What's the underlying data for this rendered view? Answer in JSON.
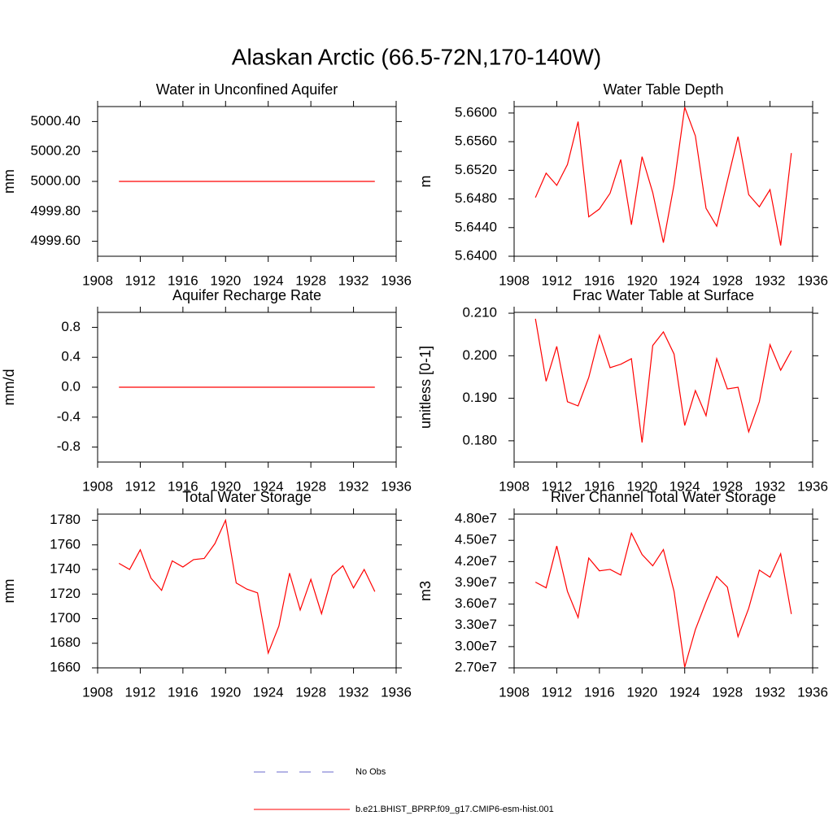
{
  "title": "Alaskan Arctic (66.5-72N,170-140W)",
  "legend": [
    {
      "name": "No Obs",
      "color": "#6a6acd",
      "dashed": true
    },
    {
      "name": "b.e21.BHIST_BPRP.f09_g17.CMIP6-esm-hist.001",
      "color": "red",
      "dashed": false
    }
  ],
  "chart_data": [
    {
      "type": "line",
      "title": "Water in Unconfined Aquifer",
      "ylabel": "mm",
      "x": [
        1910,
        1911,
        1912,
        1913,
        1914,
        1915,
        1916,
        1917,
        1918,
        1919,
        1920,
        1921,
        1922,
        1923,
        1924,
        1925,
        1926,
        1927,
        1928,
        1929,
        1930,
        1931,
        1932,
        1933,
        1934
      ],
      "xlim": [
        1908,
        1936
      ],
      "xticks": [
        1908,
        1912,
        1916,
        1920,
        1924,
        1928,
        1932,
        1936
      ],
      "ylim": [
        4999.5,
        5000.5
      ],
      "yticks": [
        {
          "value": 4999.6,
          "label": "4999.60"
        },
        {
          "value": 4999.8,
          "label": "4999.80"
        },
        {
          "value": 5000,
          "label": "5000.00"
        },
        {
          "value": 5000.2,
          "label": "5000.20"
        },
        {
          "value": 5000.4,
          "label": "5000.40"
        }
      ],
      "series": [
        {
          "color": "red",
          "values": [
            5000,
            5000,
            5000,
            5000,
            5000,
            5000,
            5000,
            5000,
            5000,
            5000,
            5000,
            5000,
            5000,
            5000,
            5000,
            5000,
            5000,
            5000,
            5000,
            5000,
            5000,
            5000,
            5000,
            5000,
            5000
          ]
        }
      ]
    },
    {
      "type": "line",
      "title": "Water Table Depth",
      "ylabel": "m",
      "x": [
        1910,
        1911,
        1912,
        1913,
        1914,
        1915,
        1916,
        1917,
        1918,
        1919,
        1920,
        1921,
        1922,
        1923,
        1924,
        1925,
        1926,
        1927,
        1928,
        1929,
        1930,
        1931,
        1932,
        1933,
        1934
      ],
      "xlim": [
        1908,
        1936
      ],
      "xticks": [
        1908,
        1912,
        1916,
        1920,
        1924,
        1928,
        1932,
        1936
      ],
      "ylim": [
        5.64,
        5.6609
      ],
      "yticks": [
        {
          "value": 5.64,
          "label": "5.6400"
        },
        {
          "value": 5.644,
          "label": "5.6440"
        },
        {
          "value": 5.648,
          "label": "5.6480"
        },
        {
          "value": 5.652,
          "label": "5.6520"
        },
        {
          "value": 5.656,
          "label": "5.6560"
        },
        {
          "value": 5.66,
          "label": "5.6600"
        }
      ],
      "series": [
        {
          "color": "red",
          "values": [
            5.6482,
            5.6516,
            5.6499,
            5.6528,
            5.6588,
            5.6455,
            5.6466,
            5.6488,
            5.6535,
            5.6444,
            5.6539,
            5.6489,
            5.6419,
            5.65,
            5.6608,
            5.6568,
            5.6467,
            5.6442,
            5.6505,
            5.6567,
            5.6486,
            5.6469,
            5.6493,
            5.6415,
            5.6544
          ]
        }
      ]
    },
    {
      "type": "line",
      "title": "Aquifer Recharge Rate",
      "ylabel": "mm/d",
      "x": [
        1910,
        1911,
        1912,
        1913,
        1914,
        1915,
        1916,
        1917,
        1918,
        1919,
        1920,
        1921,
        1922,
        1923,
        1924,
        1925,
        1926,
        1927,
        1928,
        1929,
        1930,
        1931,
        1932,
        1933,
        1934
      ],
      "xlim": [
        1908,
        1936
      ],
      "xticks": [
        1908,
        1912,
        1916,
        1920,
        1924,
        1928,
        1932,
        1936
      ],
      "ylim": [
        -1,
        1
      ],
      "yticks": [
        -0.8,
        -0.4,
        {
          "value": 0,
          "label": "0.0"
        },
        0.4,
        0.8
      ],
      "series": [
        {
          "color": "red",
          "values": [
            0,
            0,
            0,
            0,
            0,
            0,
            0,
            0,
            0,
            0,
            0,
            0,
            0,
            0,
            0,
            0,
            0,
            0,
            0,
            0,
            0,
            0,
            0,
            0,
            0
          ]
        }
      ]
    },
    {
      "type": "line",
      "title": "Frac Water Table at Surface",
      "ylabel": "unitless [0-1]",
      "x": [
        1910,
        1911,
        1912,
        1913,
        1914,
        1915,
        1916,
        1917,
        1918,
        1919,
        1920,
        1921,
        1922,
        1923,
        1924,
        1925,
        1926,
        1927,
        1928,
        1929,
        1930,
        1931,
        1932,
        1933,
        1934
      ],
      "xlim": [
        1908,
        1936
      ],
      "xticks": [
        1908,
        1912,
        1916,
        1920,
        1924,
        1928,
        1932,
        1936
      ],
      "ylim": [
        0.175,
        0.2102
      ],
      "yticks": [
        {
          "value": 0.18,
          "label": "0.180"
        },
        {
          "value": 0.19,
          "label": "0.190"
        },
        {
          "value": 0.2,
          "label": "0.200"
        },
        {
          "value": 0.21,
          "label": "0.210"
        }
      ],
      "series": [
        {
          "color": "red",
          "values": [
            0.2087,
            0.194,
            0.2022,
            0.1892,
            0.1882,
            0.1949,
            0.2048,
            0.1972,
            0.198,
            0.1993,
            0.1796,
            0.2024,
            0.2056,
            0.2004,
            0.1836,
            0.1918,
            0.1859,
            0.1993,
            0.1922,
            0.1926,
            0.1821,
            0.1892,
            0.2026,
            0.1966,
            0.2012
          ]
        }
      ]
    },
    {
      "type": "line",
      "title": "Total Water Storage",
      "ylabel": "mm",
      "x": [
        1910,
        1911,
        1912,
        1913,
        1914,
        1915,
        1916,
        1917,
        1918,
        1919,
        1920,
        1921,
        1922,
        1923,
        1924,
        1925,
        1926,
        1927,
        1928,
        1929,
        1930,
        1931,
        1932,
        1933,
        1934
      ],
      "xlim": [
        1908,
        1936
      ],
      "xticks": [
        1908,
        1912,
        1916,
        1920,
        1924,
        1928,
        1932,
        1936
      ],
      "ylim": [
        1660,
        1785
      ],
      "yticks": [
        1660,
        1680,
        1700,
        1720,
        1740,
        1760,
        1780
      ],
      "series": [
        {
          "color": "red",
          "values": [
            1745,
            1740,
            1756,
            1733,
            1723,
            1747,
            1742,
            1748,
            1749,
            1761,
            1780,
            1729,
            1724,
            1721,
            1672,
            1694,
            1737,
            1707,
            1732,
            1704,
            1735,
            1743,
            1725,
            1740,
            1722
          ]
        }
      ]
    },
    {
      "type": "line",
      "title": "River Channel Total Water Storage",
      "ylabel": "m3",
      "x": [
        1910,
        1911,
        1912,
        1913,
        1914,
        1915,
        1916,
        1917,
        1918,
        1919,
        1920,
        1921,
        1922,
        1923,
        1924,
        1925,
        1926,
        1927,
        1928,
        1929,
        1930,
        1931,
        1932,
        1933,
        1934
      ],
      "xlim": [
        1908,
        1936
      ],
      "xticks": [
        1908,
        1912,
        1916,
        1920,
        1924,
        1928,
        1932,
        1936
      ],
      "ylim": [
        27000000,
        48700000
      ],
      "yticks": [
        {
          "value": 27000000,
          "label": "2.70e7"
        },
        {
          "value": 30000000,
          "label": "3.00e7"
        },
        {
          "value": 33000000,
          "label": "3.30e7"
        },
        {
          "value": 36000000,
          "label": "3.60e7"
        },
        {
          "value": 39000000,
          "label": "3.90e7"
        },
        {
          "value": 42000000,
          "label": "4.20e7"
        },
        {
          "value": 45000000,
          "label": "4.50e7"
        },
        {
          "value": 48000000,
          "label": "4.80e7"
        }
      ],
      "series": [
        {
          "color": "red",
          "values": [
            39100000,
            38300000,
            44200000,
            37800000,
            34100000,
            42500000,
            40700000,
            40900000,
            40100000,
            46000000,
            43000000,
            41400000,
            43700000,
            37800000,
            27100000,
            32400000,
            36300000,
            39900000,
            38400000,
            31400000,
            35400000,
            40800000,
            39800000,
            43100000,
            34600000
          ]
        }
      ]
    }
  ]
}
